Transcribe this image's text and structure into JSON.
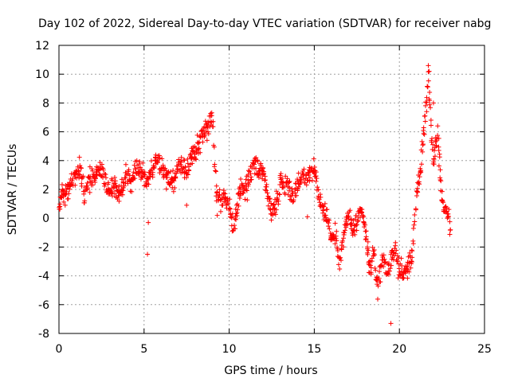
{
  "chart_data": {
    "type": "scatter",
    "title": "Day 102 of 2022, Sidereal Day-to-day VTEC variation (SDTVAR) for receiver nabg",
    "xlabel": "GPS time / hours",
    "ylabel": "SDTVAR / TECUs",
    "xlim": [
      0,
      25
    ],
    "ylim": [
      -8,
      12
    ],
    "xticks": [
      0,
      5,
      10,
      15,
      20,
      25
    ],
    "yticks": [
      -8,
      -6,
      -4,
      -2,
      0,
      2,
      4,
      6,
      8,
      10,
      12
    ],
    "grid": true,
    "marker": "+",
    "color": "#ff0000",
    "x_step": 0.05,
    "scatter": 0.5,
    "trend": [
      [
        0.0,
        0.8
      ],
      [
        0.25,
        1.8
      ],
      [
        0.5,
        2.0
      ],
      [
        0.75,
        2.5
      ],
      [
        1.0,
        3.2
      ],
      [
        1.25,
        3.4
      ],
      [
        1.5,
        1.6
      ],
      [
        1.75,
        2.6
      ],
      [
        2.0,
        2.8
      ],
      [
        2.25,
        3.2
      ],
      [
        2.5,
        3.5
      ],
      [
        2.75,
        2.5
      ],
      [
        3.0,
        1.8
      ],
      [
        3.25,
        2.2
      ],
      [
        3.5,
        1.6
      ],
      [
        3.75,
        2.2
      ],
      [
        4.0,
        3.0
      ],
      [
        4.25,
        2.6
      ],
      [
        4.5,
        3.3
      ],
      [
        4.75,
        3.4
      ],
      [
        5.0,
        3.0
      ],
      [
        5.25,
        2.8
      ],
      [
        5.5,
        3.5
      ],
      [
        5.75,
        4.2
      ],
      [
        6.0,
        3.5
      ],
      [
        6.25,
        3.0
      ],
      [
        6.5,
        2.6
      ],
      [
        6.75,
        2.4
      ],
      [
        7.0,
        3.6
      ],
      [
        7.25,
        3.8
      ],
      [
        7.5,
        3.2
      ],
      [
        7.75,
        4.2
      ],
      [
        8.0,
        4.4
      ],
      [
        8.25,
        5.2
      ],
      [
        8.5,
        5.8
      ],
      [
        8.75,
        6.5
      ],
      [
        9.0,
        7.4
      ],
      [
        9.25,
        1.8
      ],
      [
        9.5,
        1.2
      ],
      [
        9.75,
        1.6
      ],
      [
        10.0,
        0.8
      ],
      [
        10.25,
        -0.8
      ],
      [
        10.5,
        0.8
      ],
      [
        10.75,
        2.4
      ],
      [
        11.0,
        1.9
      ],
      [
        11.25,
        3.2
      ],
      [
        11.5,
        3.7
      ],
      [
        11.75,
        3.5
      ],
      [
        12.0,
        3.4
      ],
      [
        12.25,
        1.4
      ],
      [
        12.5,
        0.5
      ],
      [
        12.75,
        0.9
      ],
      [
        13.0,
        2.6
      ],
      [
        13.25,
        2.4
      ],
      [
        13.5,
        2.5
      ],
      [
        13.75,
        1.2
      ],
      [
        14.0,
        2.2
      ],
      [
        14.25,
        3.0
      ],
      [
        14.5,
        2.8
      ],
      [
        14.75,
        3.2
      ],
      [
        15.0,
        3.4
      ],
      [
        15.25,
        1.6
      ],
      [
        15.5,
        0.8
      ],
      [
        15.75,
        0.2
      ],
      [
        16.0,
        -1.4
      ],
      [
        16.25,
        -1.2
      ],
      [
        16.5,
        -3.0
      ],
      [
        16.75,
        -1.0
      ],
      [
        17.0,
        0.2
      ],
      [
        17.25,
        -0.8
      ],
      [
        17.5,
        -0.3
      ],
      [
        17.75,
        0.4
      ],
      [
        18.0,
        -0.8
      ],
      [
        18.25,
        -3.6
      ],
      [
        18.5,
        -2.6
      ],
      [
        18.75,
        -4.8
      ],
      [
        19.0,
        -2.8
      ],
      [
        19.25,
        -3.6
      ],
      [
        19.5,
        -3.4
      ],
      [
        19.75,
        -2.0
      ],
      [
        20.0,
        -3.6
      ],
      [
        20.25,
        -3.8
      ],
      [
        20.5,
        -3.4
      ],
      [
        20.75,
        -2.4
      ],
      [
        21.0,
        1.5
      ],
      [
        21.25,
        3.5
      ],
      [
        21.5,
        7.0
      ],
      [
        21.7,
        9.8
      ],
      [
        21.85,
        6.5
      ],
      [
        22.0,
        4.0
      ],
      [
        22.25,
        6.0
      ],
      [
        22.5,
        1.2
      ],
      [
        22.75,
        0.3
      ],
      [
        23.0,
        -0.3
      ]
    ],
    "outliers": [
      [
        5.2,
        -2.5
      ],
      [
        5.25,
        -0.3
      ],
      [
        7.5,
        0.9
      ],
      [
        9.3,
        0.2
      ],
      [
        14.6,
        0.1
      ],
      [
        19.5,
        -7.3
      ],
      [
        21.7,
        10.6
      ],
      [
        21.75,
        10.2
      ],
      [
        22.0,
        8.0
      ],
      [
        21.6,
        7.4
      ]
    ]
  }
}
